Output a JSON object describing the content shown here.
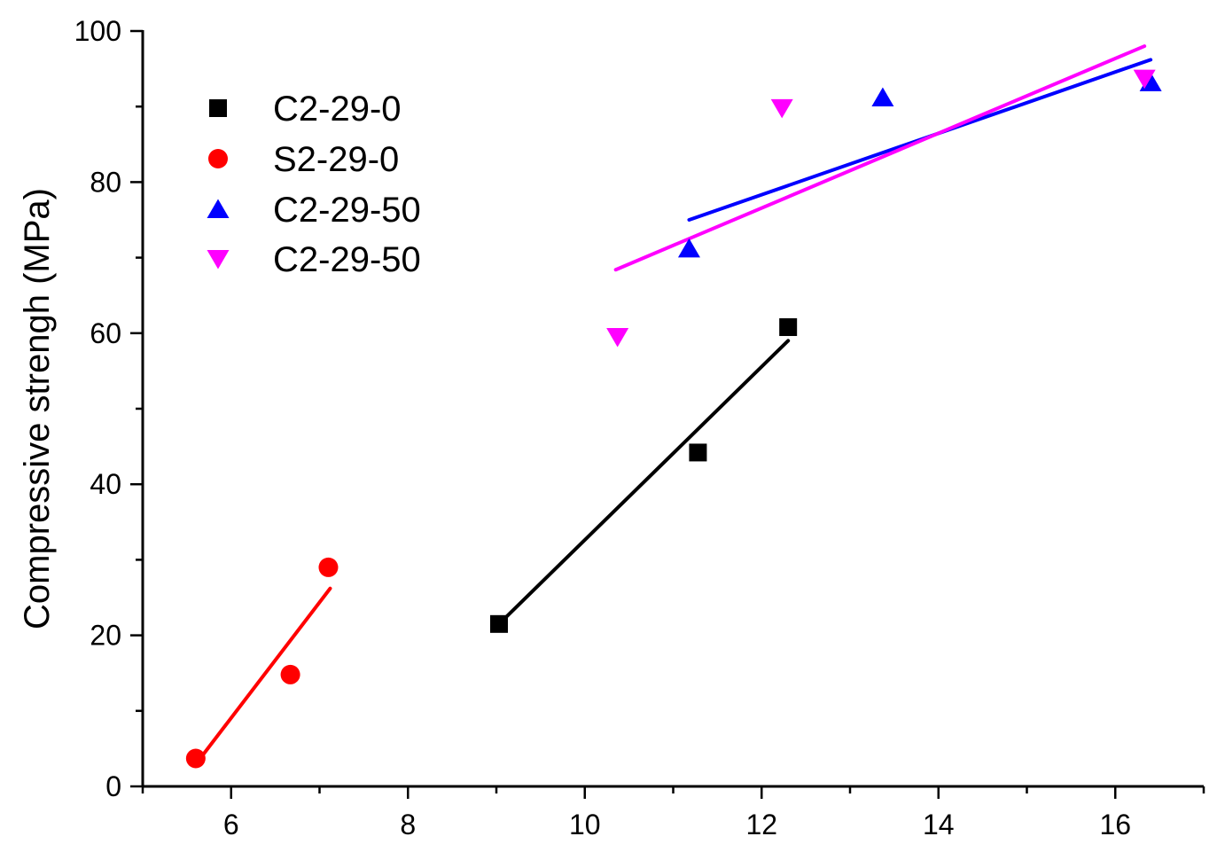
{
  "chart_data": {
    "type": "scatter",
    "title": "",
    "xlabel": "",
    "ylabel": "Compressive strengh (MPa)",
    "xlim": [
      5,
      17
    ],
    "ylim": [
      0,
      100
    ],
    "x_ticks": [
      6,
      8,
      10,
      12,
      14,
      16
    ],
    "y_ticks": [
      0,
      20,
      40,
      60,
      80,
      100
    ],
    "grid": false,
    "legend_position": "top-left",
    "series": [
      {
        "name": "C2-29-0",
        "marker": "square",
        "color": "#000000",
        "points": [
          [
            9.03,
            21.5
          ],
          [
            11.28,
            44.2
          ],
          [
            12.3,
            60.8
          ]
        ],
        "fit": [
          [
            9.03,
            21.5
          ],
          [
            12.3,
            59.0
          ]
        ]
      },
      {
        "name": "S2-29-0",
        "marker": "circle",
        "color": "#ff0000",
        "points": [
          [
            5.6,
            3.7
          ],
          [
            6.67,
            14.8
          ],
          [
            7.1,
            29.0
          ]
        ],
        "fit": [
          [
            5.65,
            3.7
          ],
          [
            7.12,
            26.2
          ]
        ]
      },
      {
        "name": "C2-29-50",
        "marker": "triangle-up",
        "color": "#0000ff",
        "points": [
          [
            11.18,
            71.2
          ],
          [
            13.37,
            91.2
          ],
          [
            16.4,
            93.2
          ]
        ],
        "fit": [
          [
            11.18,
            75.0
          ],
          [
            16.4,
            96.2
          ]
        ]
      },
      {
        "name": "C2-29-50",
        "marker": "triangle-down",
        "color": "#ff00ff",
        "points": [
          [
            10.37,
            59.5
          ],
          [
            12.23,
            89.8
          ],
          [
            16.33,
            93.7
          ]
        ],
        "fit": [
          [
            10.35,
            68.4
          ],
          [
            16.33,
            98.0
          ]
        ]
      }
    ]
  }
}
